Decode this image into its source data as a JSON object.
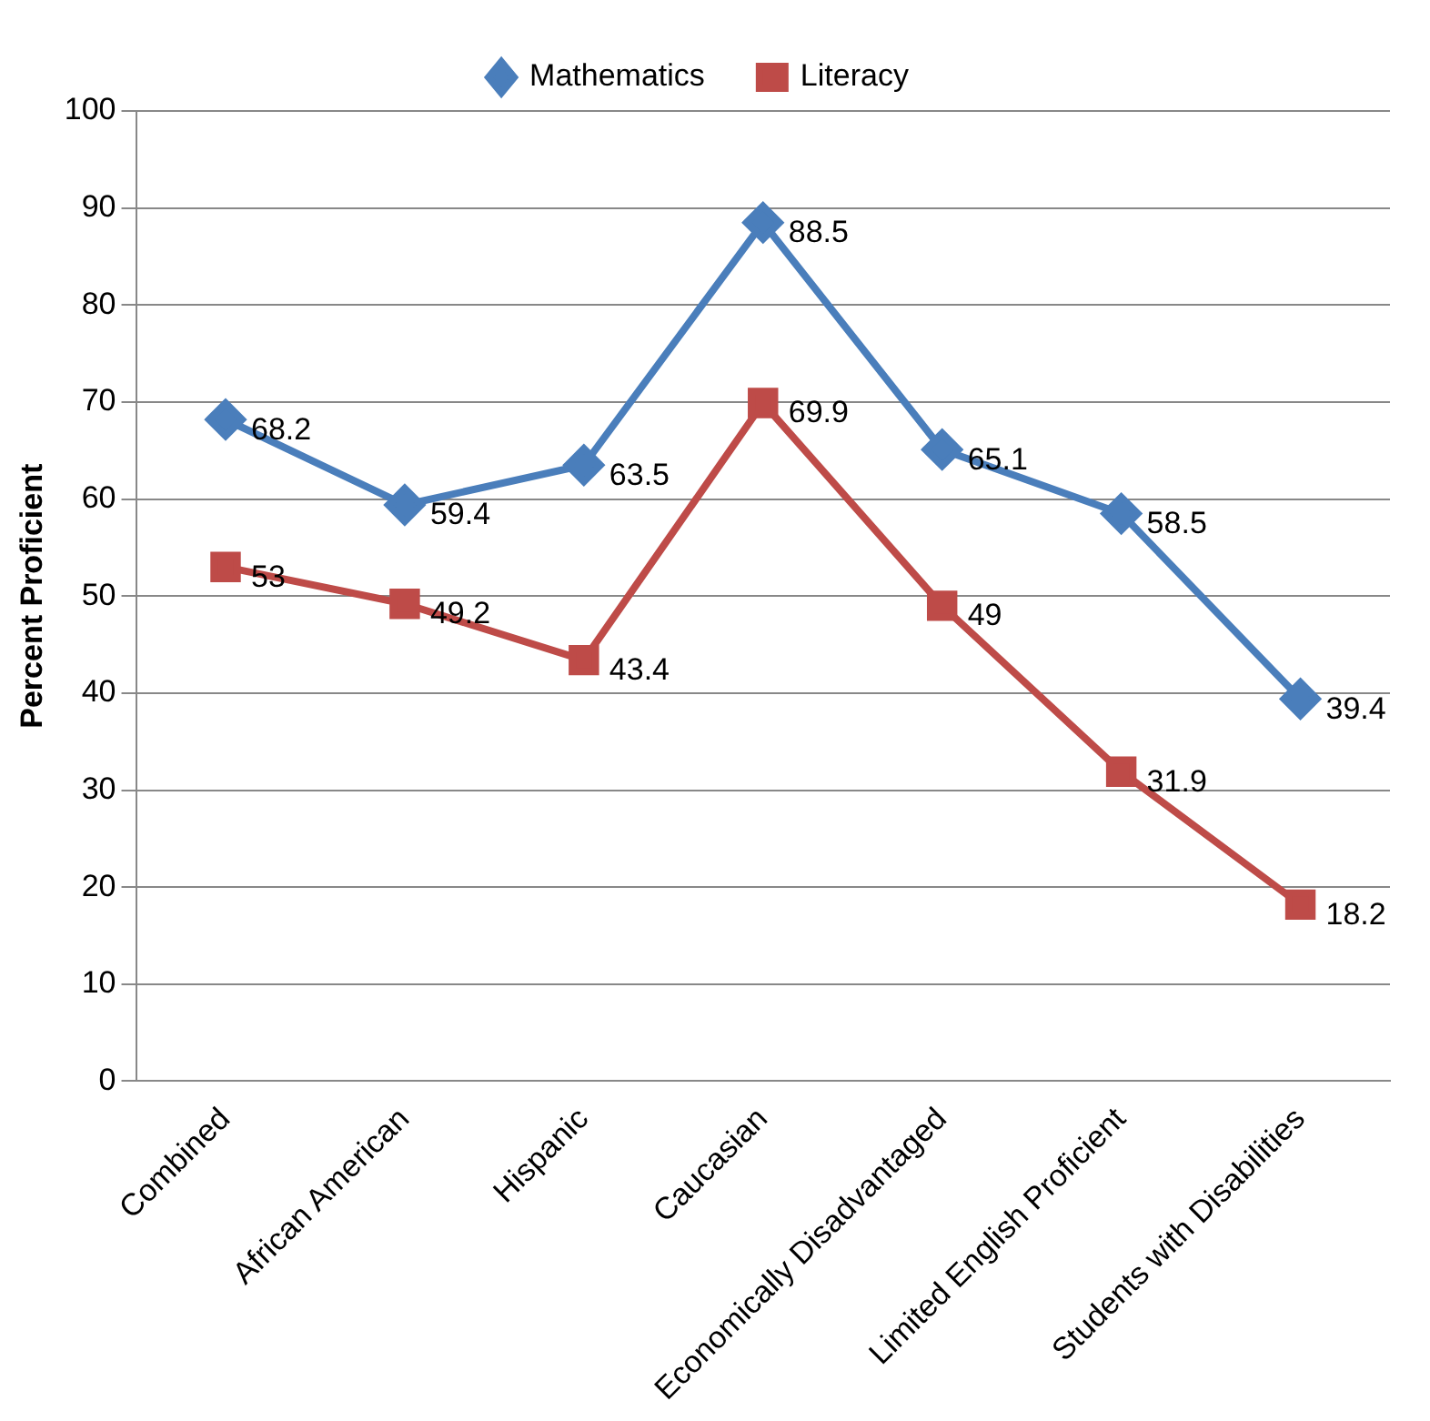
{
  "chart_data": {
    "type": "line",
    "ylabel": "Percent Proficient",
    "categories": [
      "Combined",
      "African American",
      "Hispanic",
      "Caucasian",
      "Economically Disadvantaged",
      "Limited English Proficient",
      "Students with Disabilities"
    ],
    "series": [
      {
        "name": "Mathematics",
        "color": "#4a7ebb",
        "marker": "diamond",
        "values": [
          68.2,
          59.4,
          63.5,
          88.5,
          65.1,
          58.5,
          39.4
        ]
      },
      {
        "name": "Literacy",
        "color": "#be4b48",
        "marker": "square",
        "values": [
          53,
          49.2,
          43.4,
          69.9,
          49,
          31.9,
          18.2
        ]
      }
    ],
    "ylim": [
      0,
      100
    ],
    "yticks": [
      0,
      10,
      20,
      30,
      40,
      50,
      60,
      70,
      80,
      90,
      100
    ],
    "grid": "y",
    "legend": "top",
    "data_labels": true
  }
}
